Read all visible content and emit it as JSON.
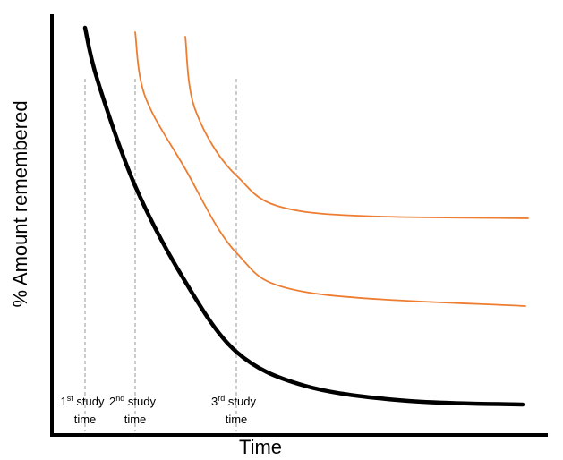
{
  "chart_data": {
    "type": "line",
    "xlabel": "Time",
    "ylabel": "% Amount remembered",
    "grid": false,
    "legend": "none",
    "colors": {
      "baseline_curve": "#000000",
      "review_curves": "#ED7D31",
      "guide_lines": "#999999",
      "axes": "#000000"
    },
    "study_times": [
      {
        "num": "1",
        "suffix": "st",
        "rest": "study",
        "line2": "time"
      },
      {
        "num": "2",
        "suffix": "nd",
        "rest": "study",
        "line2": "time"
      },
      {
        "num": "3",
        "suffix": "rd",
        "rest": "study",
        "line2": "time"
      }
    ],
    "series": [
      {
        "start_study": 1,
        "color": "#000000",
        "retention_levels": [
          1.0,
          0.86,
          0.58,
          0.33,
          0.14,
          0.05,
          0.01,
          0.0
        ]
      },
      {
        "start_study": 2,
        "color": "#ED7D31",
        "retention_levels": [
          1.0,
          0.82,
          0.62,
          0.38,
          0.27,
          0.23
        ]
      },
      {
        "start_study": 3,
        "color": "#ED7D31",
        "retention_levels": [
          1.0,
          0.78,
          0.58,
          0.47,
          0.45
        ]
      }
    ]
  }
}
